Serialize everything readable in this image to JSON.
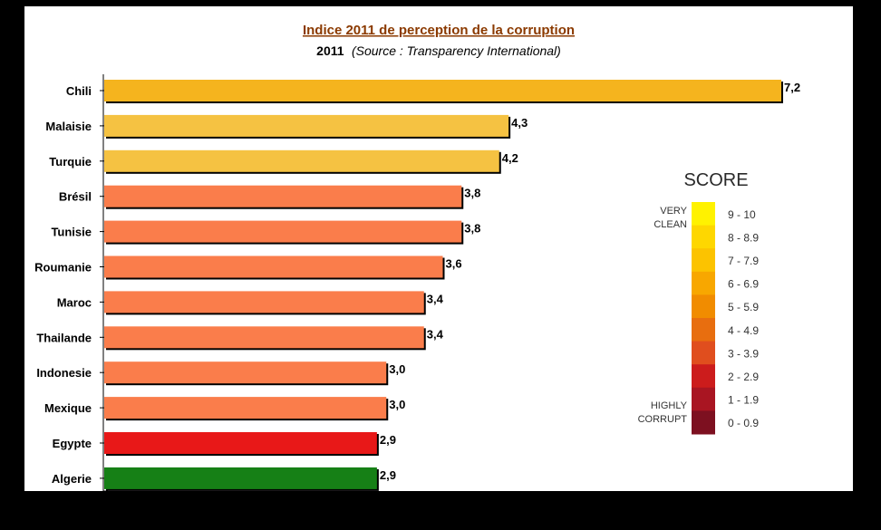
{
  "chart_data": {
    "type": "bar",
    "orientation": "horizontal",
    "title": "Indice 2011 de perception de la corruption",
    "subtitle_year": "2011",
    "subtitle_source": "(Source : Transparency International)",
    "categories": [
      "Chili",
      "Malaisie",
      "Turquie",
      "Brésil",
      "Tunisie",
      "Roumanie",
      "Maroc",
      "Thailande",
      "Indonesie",
      "Mexique",
      "Egypte",
      "Algerie"
    ],
    "values": [
      7.2,
      4.3,
      4.2,
      3.8,
      3.8,
      3.6,
      3.4,
      3.4,
      3.0,
      3.0,
      2.9,
      2.9
    ],
    "value_labels": [
      "7,2",
      "4,3",
      "4,2",
      "3,8",
      "3,8",
      "3,6",
      "3,4",
      "3,4",
      "3,0",
      "3,0",
      "2,9",
      "2,9"
    ],
    "bar_colors": [
      "#f5b41e",
      "#f5c242",
      "#f5c242",
      "#fa7d4b",
      "#fa7d4b",
      "#fa7d4b",
      "#fa7d4b",
      "#fa7d4b",
      "#fa7d4b",
      "#fa7d4b",
      "#e81818",
      "#168016"
    ],
    "xlim": [
      0,
      7.2
    ],
    "grid": false,
    "legend": "right"
  },
  "score_legend": {
    "title": "SCORE",
    "top_label": [
      "VERY",
      "CLEAN"
    ],
    "bottom_label": [
      "HIGHLY",
      "CORRUPT"
    ],
    "ranges": [
      "9 - 10",
      "8 - 8.9",
      "7 - 7.9",
      "6 - 6.9",
      "5 - 5.9",
      "4 - 4.9",
      "3 - 3.9",
      "2 - 2.9",
      "1 - 1.9",
      "0 - 0.9"
    ],
    "colors": [
      "#fff200",
      "#fed700",
      "#fcc300",
      "#f8a700",
      "#f18c00",
      "#e86e0f",
      "#e04e1e",
      "#cc1c1c",
      "#a91522",
      "#7d1020"
    ]
  }
}
